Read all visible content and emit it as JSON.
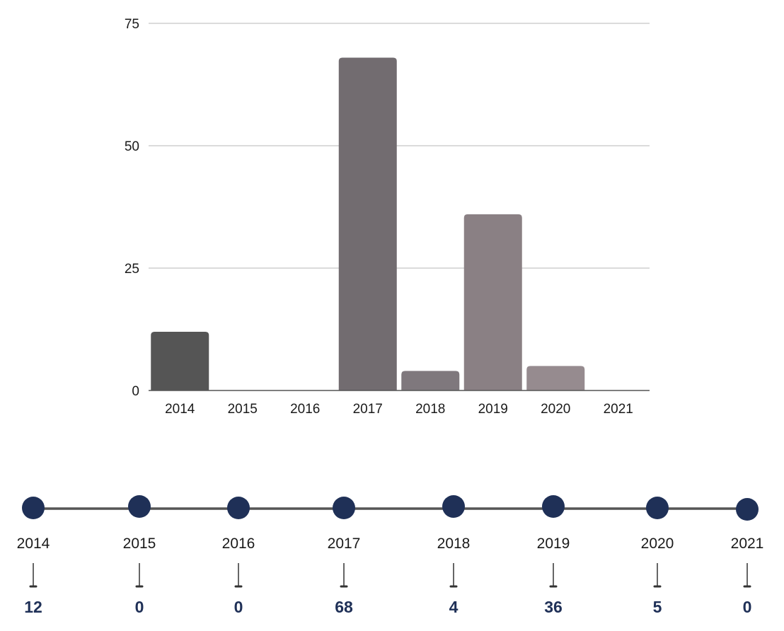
{
  "chart_data": {
    "type": "bar",
    "categories": [
      "2014",
      "2015",
      "2016",
      "2017",
      "2018",
      "2019",
      "2020",
      "2021"
    ],
    "values": [
      12,
      0,
      0,
      68,
      4,
      36,
      5,
      0
    ],
    "bar_colors": [
      "#555555",
      "#555555",
      "#555555",
      "#726c70",
      "#7f787d",
      "#8a8084",
      "#968b8f",
      "#968b8f"
    ],
    "ylim": [
      0,
      75
    ],
    "yticks": [
      0,
      25,
      50,
      75
    ],
    "grid": true,
    "title": "",
    "xlabel": "",
    "ylabel": ""
  },
  "timeline": {
    "line_color": "#555555",
    "dot_color": "#1f3057",
    "value_color": "#1f3057",
    "items": [
      {
        "year": "2014",
        "value": "12"
      },
      {
        "year": "2015",
        "value": "0"
      },
      {
        "year": "2016",
        "value": "0"
      },
      {
        "year": "2017",
        "value": "68"
      },
      {
        "year": "2018",
        "value": "4"
      },
      {
        "year": "2019",
        "value": "36"
      },
      {
        "year": "2020",
        "value": "5"
      },
      {
        "year": "2021",
        "value": "0"
      }
    ]
  }
}
